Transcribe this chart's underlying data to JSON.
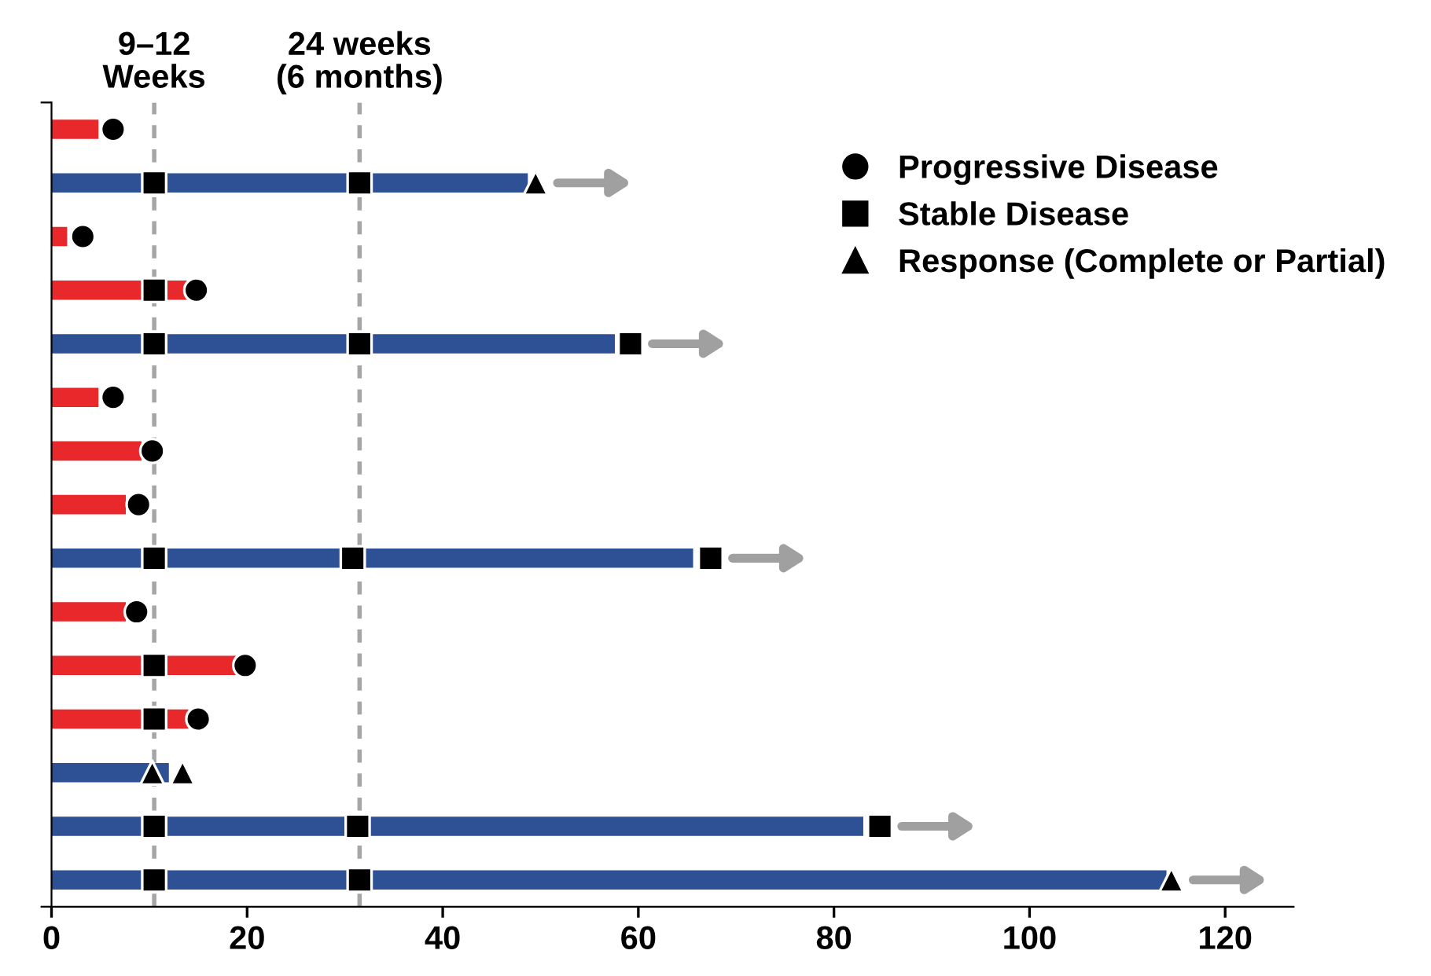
{
  "chart_data": {
    "type": "bar",
    "orientation": "horizontal",
    "tick_labels": "x",
    "grid": false,
    "legend": "top right",
    "categories": [
      null,
      null,
      null,
      null,
      null,
      null,
      null,
      null,
      null,
      null,
      null,
      null,
      null,
      null,
      null
    ],
    "xlim": [
      0,
      127
    ],
    "xticks": [
      0,
      20,
      40,
      60,
      80,
      100,
      120
    ],
    "ref_lines": [
      {
        "axis": "x",
        "value": 10.5,
        "label": "9–12\nWeeks",
        "color": "#a6a6a6",
        "line_style": "dashed"
      },
      {
        "axis": "x",
        "value": 31.5,
        "label": "24 weeks\n(6 months)",
        "color": "#a6a6a6",
        "line_style": "dashed"
      }
    ],
    "series": [
      {
        "values": [
          4.8,
          48.7,
          1.6,
          14,
          57.6,
          4.8,
          9.2,
          7.6,
          65.6,
          7.6,
          18.9,
          14,
          12,
          83,
          114
        ],
        "colors": [
          "#e8282b",
          "#2e5195",
          "#e8282b",
          "#e8282b",
          "#2e5195",
          "#e8282b",
          "#e8282b",
          "#e8282b",
          "#2e5195",
          "#e8282b",
          "#e8282b",
          "#e8282b",
          "#2e5195",
          "#2e5195",
          "#2e5195"
        ]
      },
      {
        "type": "scatter",
        "name": "Progressive Disease",
        "marker": "circle",
        "color": "#000000",
        "values": [
          6.3,
          null,
          3.2,
          14.8,
          null,
          6.3,
          10.3,
          8.9,
          null,
          8.7,
          19.8,
          15,
          null,
          null,
          null
        ]
      },
      {
        "type": "scatter",
        "name": "Stable Disease",
        "marker": "square",
        "color": "#000000",
        "values": [
          null,
          10.5,
          null,
          10.5,
          10.5,
          null,
          null,
          null,
          10.5,
          null,
          10.5,
          10.5,
          null,
          10.5,
          10.5
        ]
      },
      {
        "type": "scatter",
        "marker": "square",
        "color": "#000000",
        "values": [
          null,
          31.5,
          null,
          null,
          31.5,
          null,
          null,
          null,
          30.8,
          null,
          null,
          null,
          null,
          31.3,
          31.5
        ]
      },
      {
        "type": "scatter",
        "marker": "square",
        "color": "#000000",
        "values": [
          null,
          null,
          null,
          null,
          59.2,
          null,
          null,
          null,
          67.4,
          null,
          null,
          null,
          null,
          84.7,
          null
        ]
      },
      {
        "type": "scatter",
        "name": "Response (Complete or Partial)",
        "marker": "triangle",
        "color": "#000000",
        "values": [
          null,
          49.5,
          null,
          null,
          null,
          null,
          null,
          null,
          null,
          null,
          null,
          null,
          10.3,
          null,
          114.5
        ]
      },
      {
        "type": "scatter",
        "marker": "triangle",
        "color": "#000000",
        "values": [
          null,
          null,
          null,
          null,
          null,
          null,
          null,
          null,
          null,
          null,
          null,
          null,
          13.4,
          null,
          null
        ]
      }
    ]
  }
}
